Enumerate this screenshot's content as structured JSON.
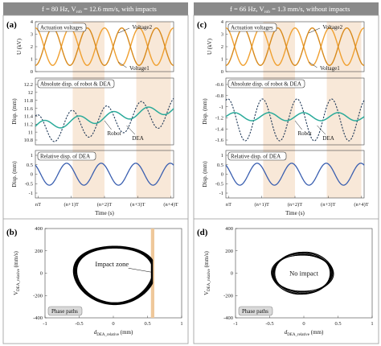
{
  "colors": {
    "title_bg": "#8a8a8a",
    "shade": "#f8e8d8",
    "voltage": "#f0a030",
    "voltage_dark": "#d88a1c",
    "robot": "#2aaa9a",
    "dea": "#223a58",
    "relative": "#3a5fb0",
    "impact_zone": "#efc89a",
    "phase_box": "#d9d9d9"
  },
  "columns": [
    {
      "title": "f = 80 Hz, V₀ₖₖ = 12.6 mm/s, with impacts",
      "title_main": "f = 80 Hz, V",
      "title_sub": "rob",
      "title_tail": " = 12.6 mm/s, with impacts",
      "panel_label": "(a)",
      "voltage": {
        "box": "Actuation voltages",
        "ylabel": "U (kV)",
        "label_top": "Voltage2",
        "label_bottom": "Voltage1",
        "yticks": [
          "4",
          "3",
          "2",
          "1",
          "0"
        ]
      },
      "disp": {
        "box": "Absolute disp. of robot & DEA",
        "ylabel": "Disp. (mm)",
        "yticks": [
          "12.2",
          "12",
          "11.8",
          "11.6",
          "11.4",
          "11.2",
          "11",
          "10.8"
        ],
        "robot_label": "Robot",
        "dea_label": "DEA"
      },
      "rel": {
        "box": "Relative disp. of DEA",
        "ylabel": "Disp. (mm)",
        "yticks": [
          "1",
          "0.5",
          "0",
          "-0.5",
          "-1"
        ]
      },
      "time_ticks": [
        "nT",
        "(n+1)T",
        "(n+2)T",
        "(n+3)T",
        "(n+4)T"
      ],
      "time_label": "Time (s)",
      "phase": {
        "panel_label": "(b)",
        "ylabel": "V",
        "ylabel_sub": "DEA_relative",
        "ylabel_unit": " (mm/s)",
        "xlabel": "d",
        "xlabel_sub": "DEA_relative",
        "xlabel_unit": " (mm)",
        "xticks": [
          "-1",
          "-0.5",
          "0",
          "0.5",
          "1"
        ],
        "yticks": [
          "400",
          "200",
          "0",
          "-200",
          "-400"
        ],
        "annotation": "Impact zone",
        "box": "Phase paths"
      }
    },
    {
      "title_main": "f = 66 Hz, V",
      "title_sub": "rob",
      "title_tail": " = 1.3 mm/s, without impacts",
      "panel_label": "(c)",
      "voltage": {
        "box": "Actuation voltages",
        "ylabel": "U (kV)",
        "label_top": "Voltage2",
        "label_bottom": "Voltage1",
        "yticks": [
          "4",
          "3",
          "2",
          "1",
          "0"
        ]
      },
      "disp": {
        "box": "Absolute disp. of robot & DEA",
        "ylabel": "Disp. (mm)",
        "yticks": [
          "-0.6",
          "-0.8",
          "-1",
          "-1.2",
          "-1.4",
          "-1.6"
        ],
        "robot_label": "Robot",
        "dea_label": "DEA"
      },
      "rel": {
        "box": "Relative disp. of DEA",
        "ylabel": "Disp. (mm)",
        "yticks": [
          "1",
          "0.5",
          "0",
          "-0.5",
          "-1"
        ]
      },
      "time_ticks": [
        "nT",
        "(n+1)T",
        "(n+2)T",
        "(n+3)T",
        "(n+4)T"
      ],
      "time_label": "Time (s)",
      "phase": {
        "panel_label": "(d)",
        "ylabel": "V",
        "ylabel_sub": "DEA_relative",
        "ylabel_unit": " (mm/s)",
        "xlabel": "d",
        "xlabel_sub": "DEA_relative",
        "xlabel_unit": " (mm)",
        "xticks": [
          "-1",
          "-0.5",
          "0",
          "0.5",
          "1"
        ],
        "yticks": [
          "400",
          "200",
          "0",
          "-200",
          "-400"
        ],
        "annotation": "No impact",
        "box": "Phase paths"
      }
    }
  ],
  "chart_data": [
    {
      "type": "line",
      "title": "Actuation voltages",
      "ylabel": "U (kV)",
      "xlabel": "Time (s)",
      "ylim": [
        0,
        4
      ],
      "x": [
        "nT",
        "(n+1)T",
        "(n+2)T",
        "(n+3)T",
        "(n+4)T"
      ],
      "series": [
        {
          "name": "Voltage1",
          "amplitude": 1.5,
          "offset": 2,
          "cycles": 4
        },
        {
          "name": "Voltage2",
          "amplitude": 1.5,
          "offset": 2,
          "cycles": 4
        }
      ]
    },
    {
      "type": "line",
      "title": "Absolute disp. of robot & DEA",
      "ylabel": "Disp. (mm)",
      "ylim": [
        10.8,
        12.2
      ],
      "series": [
        {
          "name": "Robot",
          "start": 11.55,
          "end": 11.95,
          "amplitude": 0.12
        },
        {
          "name": "DEA",
          "start": 11.5,
          "end": 12.0,
          "amplitude": 0.45
        }
      ]
    },
    {
      "type": "line",
      "title": "Relative disp. of DEA",
      "ylabel": "Disp. (mm)",
      "ylim": [
        -1,
        1
      ],
      "series": [
        {
          "name": "",
          "amplitude": 0.6,
          "cycles": 4
        }
      ]
    },
    {
      "type": "line",
      "title": "Absolute disp. of robot & DEA",
      "ylabel": "Disp. (mm)",
      "ylim": [
        -1.6,
        -0.6
      ],
      "series": [
        {
          "name": "Robot",
          "center": -1.15,
          "amplitude": 0.1
        },
        {
          "name": "DEA",
          "center": -1.1,
          "amplitude": 0.45
        }
      ]
    },
    {
      "type": "line",
      "title": "Relative disp. of DEA",
      "ylabel": "Disp. (mm)",
      "ylim": [
        -1,
        1
      ],
      "series": [
        {
          "name": "",
          "amplitude": 0.45,
          "cycles": 4
        }
      ]
    },
    {
      "type": "scatter",
      "title": "Phase paths",
      "xlim": [
        -1,
        1
      ],
      "ylim": [
        -400,
        400
      ],
      "annotation": "Impact zone",
      "impact_zone_x": [
        0.55,
        0.6
      ]
    },
    {
      "type": "scatter",
      "title": "Phase paths",
      "xlim": [
        -1,
        1
      ],
      "ylim": [
        -400,
        400
      ],
      "annotation": "No impact"
    }
  ]
}
